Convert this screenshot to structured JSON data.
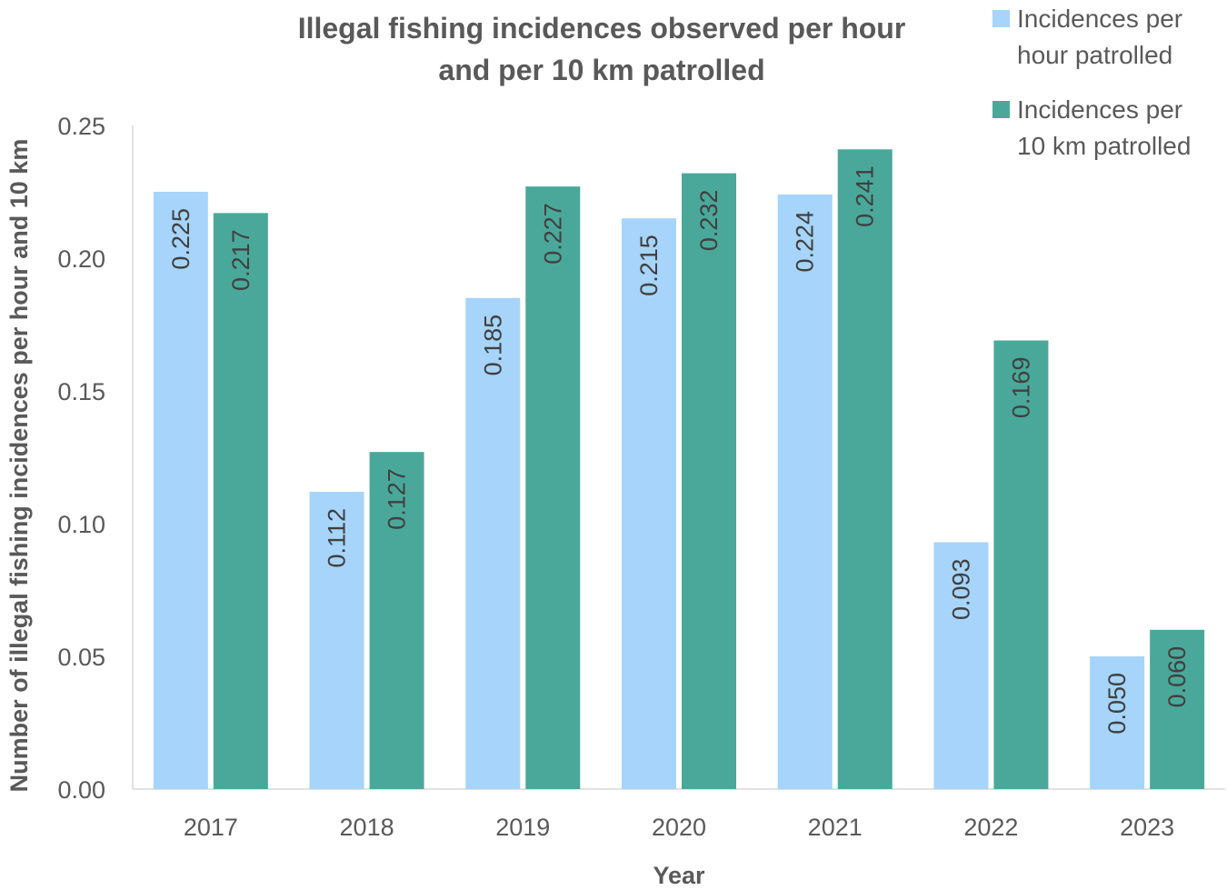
{
  "chart_data": {
    "type": "bar",
    "title_lines": [
      "Illegal fishing incidences observed per hour",
      "and per 10 km patrolled"
    ],
    "xlabel": "Year",
    "ylabel": "Number of illegal fishing incidences per hour and 10 km",
    "categories": [
      "2017",
      "2018",
      "2019",
      "2020",
      "2021",
      "2022",
      "2023"
    ],
    "ylim": [
      0,
      0.25
    ],
    "yticks": [
      0.0,
      0.05,
      0.1,
      0.15,
      0.2,
      0.25
    ],
    "ytick_labels": [
      "0.00",
      "0.05",
      "0.10",
      "0.15",
      "0.20",
      "0.25"
    ],
    "grid": false,
    "legend_position": "top-right",
    "series": [
      {
        "name": "Incidences per hour patrolled",
        "legend_lines": [
          "Incidences per",
          "hour patrolled"
        ],
        "color": "#A6D4FA",
        "values": [
          0.225,
          0.112,
          0.185,
          0.215,
          0.224,
          0.093,
          0.05
        ],
        "labels": [
          "0.225",
          "0.112",
          "0.185",
          "0.215",
          "0.224",
          "0.093",
          "0.050"
        ]
      },
      {
        "name": "Incidences per 10 km patrolled",
        "legend_lines": [
          "Incidences per",
          "10 km patrolled"
        ],
        "color": "#4AA89A",
        "values": [
          0.217,
          0.127,
          0.227,
          0.232,
          0.241,
          0.169,
          0.06
        ],
        "labels": [
          "0.217",
          "0.127",
          "0.227",
          "0.232",
          "0.241",
          "0.169",
          "0.060"
        ]
      }
    ]
  }
}
